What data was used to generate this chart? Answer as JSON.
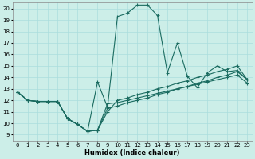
{
  "xlabel": "Humidex (Indice chaleur)",
  "background_color": "#cceee8",
  "grid_color": "#aadddd",
  "line_color": "#1a6b60",
  "xlim": [
    -0.5,
    23.5
  ],
  "ylim": [
    8.5,
    20.5
  ],
  "xticks": [
    0,
    1,
    2,
    3,
    4,
    5,
    6,
    7,
    8,
    9,
    10,
    11,
    12,
    13,
    14,
    15,
    16,
    17,
    18,
    19,
    20,
    21,
    22,
    23
  ],
  "yticks": [
    9,
    10,
    11,
    12,
    13,
    14,
    15,
    16,
    17,
    18,
    19,
    20
  ],
  "curve1_x": [
    0,
    1,
    2,
    3,
    4,
    5,
    6,
    7,
    8,
    9,
    10,
    11,
    12,
    13,
    14,
    15,
    16,
    17,
    18,
    19,
    20,
    21,
    22,
    23
  ],
  "curve1_y": [
    12.7,
    12.0,
    11.9,
    11.9,
    11.9,
    10.4,
    9.9,
    9.3,
    13.6,
    11.4,
    19.3,
    19.6,
    20.3,
    20.3,
    19.4,
    14.4,
    17.0,
    14.1,
    13.1,
    14.4,
    15.0,
    14.5,
    14.6,
    13.8
  ],
  "curve2_x": [
    0,
    1,
    2,
    3,
    4,
    5,
    6,
    7,
    8,
    9,
    10,
    11,
    12,
    13,
    14,
    15,
    16,
    17,
    18,
    19,
    20,
    21,
    22,
    23
  ],
  "curve2_y": [
    12.7,
    12.0,
    11.9,
    11.9,
    11.9,
    10.4,
    9.9,
    9.3,
    9.4,
    11.0,
    12.0,
    12.2,
    12.5,
    12.7,
    13.0,
    13.2,
    13.5,
    13.7,
    14.0,
    14.2,
    14.5,
    14.7,
    15.0,
    13.8
  ],
  "curve3_x": [
    0,
    1,
    2,
    3,
    4,
    5,
    6,
    7,
    8,
    9,
    10,
    11,
    12,
    13,
    14,
    15,
    16,
    17,
    18,
    19,
    20,
    21,
    22,
    23
  ],
  "curve3_y": [
    12.7,
    12.0,
    11.9,
    11.9,
    11.9,
    10.4,
    9.9,
    9.3,
    9.4,
    11.3,
    11.5,
    11.8,
    12.0,
    12.2,
    12.5,
    12.7,
    13.0,
    13.2,
    13.5,
    13.7,
    14.0,
    14.2,
    14.5,
    13.8
  ],
  "curve4_x": [
    0,
    1,
    2,
    3,
    4,
    5,
    6,
    7,
    8,
    9,
    10,
    11,
    12,
    13,
    14,
    15,
    16,
    17,
    18,
    19,
    20,
    21,
    22,
    23
  ],
  "curve4_y": [
    12.7,
    12.0,
    11.9,
    11.9,
    11.9,
    10.4,
    9.9,
    9.3,
    9.4,
    11.7,
    11.8,
    12.0,
    12.2,
    12.4,
    12.6,
    12.8,
    13.0,
    13.2,
    13.4,
    13.6,
    13.8,
    14.0,
    14.2,
    13.5
  ],
  "marker": "+",
  "markersize": 3,
  "linewidth": 0.8
}
